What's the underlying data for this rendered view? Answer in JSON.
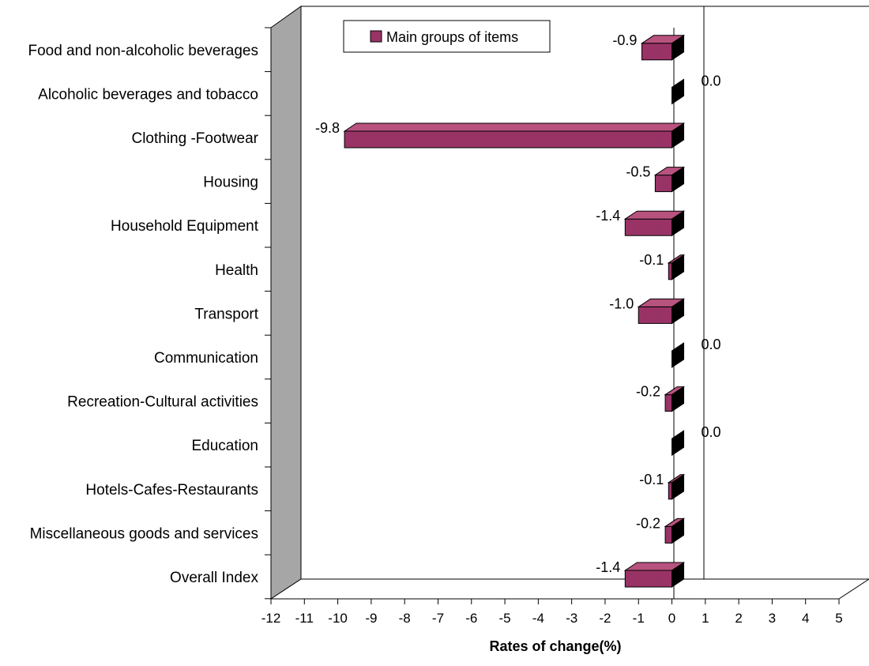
{
  "chart_data": {
    "type": "bar",
    "orientation": "horizontal",
    "three_d": true,
    "categories": [
      "Food and non-alcoholic beverages",
      "Alcoholic beverages and tobacco",
      "Clothing -Footwear",
      "Housing",
      "Household Equipment",
      "Health",
      "Transport",
      "Communication",
      "Recreation-Cultural activities",
      "Education",
      "Hotels-Cafes-Restaurants",
      "Miscellaneous goods and services",
      "Overall Index"
    ],
    "series": [
      {
        "name": "Main groups of items",
        "values": [
          -0.9,
          0.0,
          -9.8,
          -0.5,
          -1.4,
          -0.1,
          -1.0,
          0.0,
          -0.2,
          0.0,
          -0.1,
          -0.2,
          -1.4
        ],
        "labels": [
          "-0.9",
          "0.0",
          "-9.8",
          "-0.5",
          "-1.4",
          "-0.1",
          "-1.0",
          "0.0",
          "-0.2",
          "0.0",
          "-0.1",
          "-0.2",
          "-1.4"
        ]
      }
    ],
    "xlim": [
      -12,
      5
    ],
    "xticks": [
      "-12",
      "-11",
      "-10",
      "-9",
      "-8",
      "-7",
      "-6",
      "-5",
      "-4",
      "-3",
      "-2",
      "-1",
      "0",
      "1",
      "2",
      "3",
      "4",
      "5"
    ],
    "xlabel": "Rates of change(%)",
    "ylabel": "",
    "title": "",
    "legend_position": "top-left",
    "colors": {
      "bar_front": "#993366",
      "bar_top": "#b8527f",
      "bar_side": "#000000",
      "wall": "#a6a6a6",
      "gridline": "#000000"
    }
  }
}
